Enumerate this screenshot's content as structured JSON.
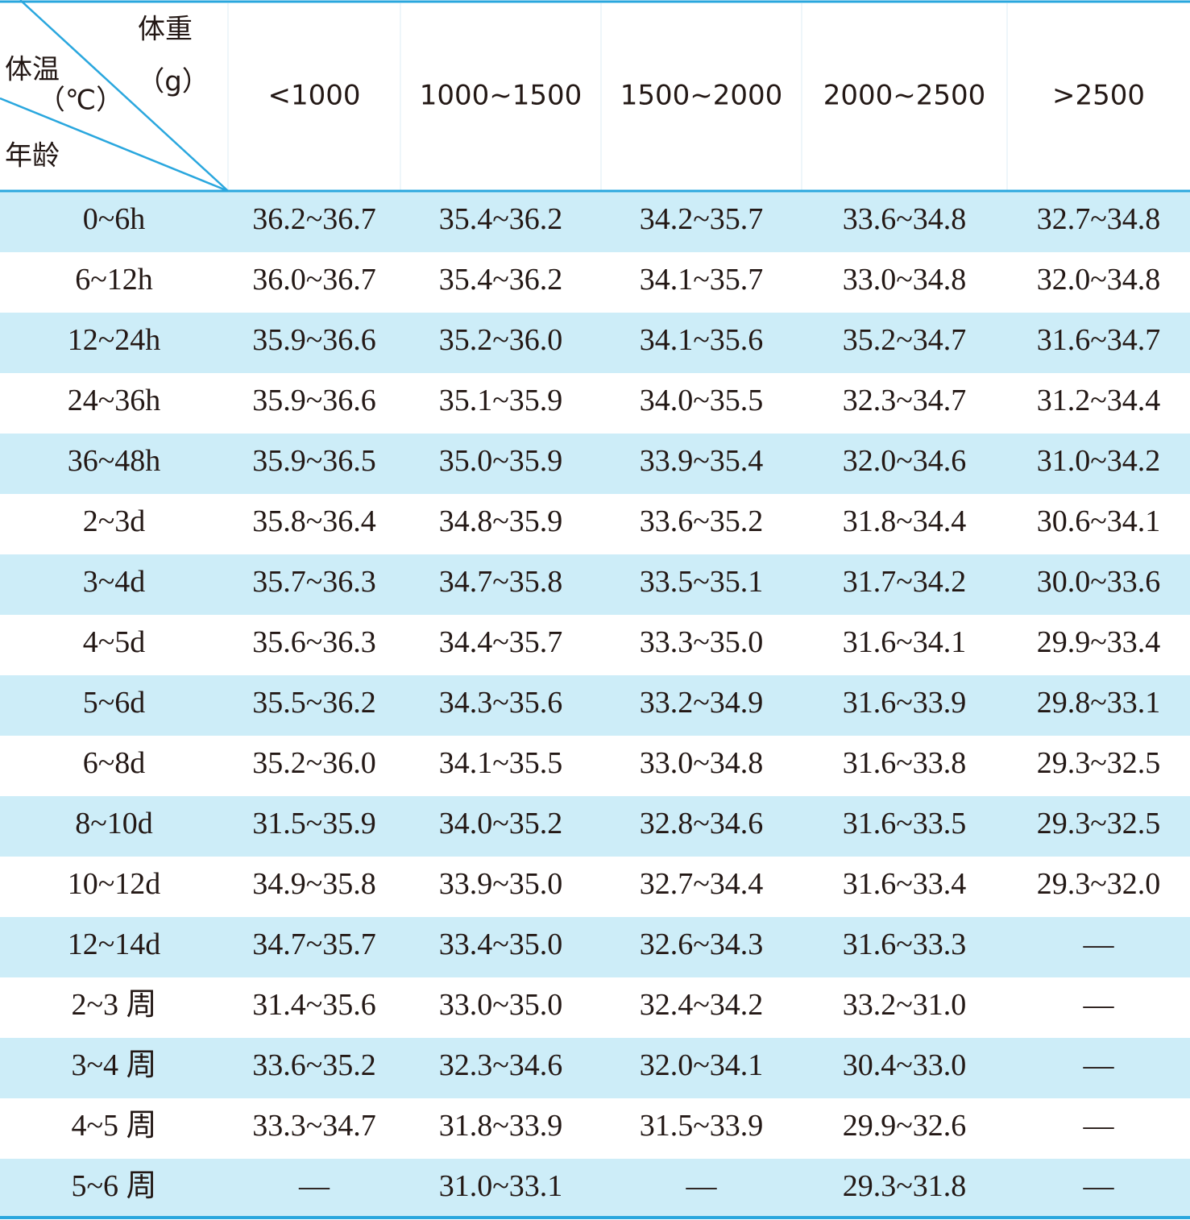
{
  "header": {
    "weight_label": "体重",
    "weight_unit": "（g）",
    "temp_label": "体温",
    "temp_unit": "（℃）",
    "age_label": "年龄"
  },
  "table": {
    "columns": [
      "<1000",
      "1000~1500",
      "1500~2000",
      "2000~2500",
      ">2500"
    ],
    "rows": [
      [
        "0~6h",
        "36.2~36.7",
        "35.4~36.2",
        "34.2~35.7",
        "33.6~34.8",
        "32.7~34.8"
      ],
      [
        "6~12h",
        "36.0~36.7",
        "35.4~36.2",
        "34.1~35.7",
        "33.0~34.8",
        "32.0~34.8"
      ],
      [
        "12~24h",
        "35.9~36.6",
        "35.2~36.0",
        "34.1~35.6",
        "35.2~34.7",
        "31.6~34.7"
      ],
      [
        "24~36h",
        "35.9~36.6",
        "35.1~35.9",
        "34.0~35.5",
        "32.3~34.7",
        "31.2~34.4"
      ],
      [
        "36~48h",
        "35.9~36.5",
        "35.0~35.9",
        "33.9~35.4",
        "32.0~34.6",
        "31.0~34.2"
      ],
      [
        "2~3d",
        "35.8~36.4",
        "34.8~35.9",
        "33.6~35.2",
        "31.8~34.4",
        "30.6~34.1"
      ],
      [
        "3~4d",
        "35.7~36.3",
        "34.7~35.8",
        "33.5~35.1",
        "31.7~34.2",
        "30.0~33.6"
      ],
      [
        "4~5d",
        "35.6~36.3",
        "34.4~35.7",
        "33.3~35.0",
        "31.6~34.1",
        "29.9~33.4"
      ],
      [
        "5~6d",
        "35.5~36.2",
        "34.3~35.6",
        "33.2~34.9",
        "31.6~33.9",
        "29.8~33.1"
      ],
      [
        "6~8d",
        "35.2~36.0",
        "34.1~35.5",
        "33.0~34.8",
        "31.6~33.8",
        "29.3~32.5"
      ],
      [
        "8~10d",
        "31.5~35.9",
        "34.0~35.2",
        "32.8~34.6",
        "31.6~33.5",
        "29.3~32.5"
      ],
      [
        "10~12d",
        "34.9~35.8",
        "33.9~35.0",
        "32.7~34.4",
        "31.6~33.4",
        "29.3~32.0"
      ],
      [
        "12~14d",
        "34.7~35.7",
        "33.4~35.0",
        "32.6~34.3",
        "31.6~33.3",
        "—"
      ],
      [
        "2~3 周",
        "31.4~35.6",
        "33.0~35.0",
        "32.4~34.2",
        "33.2~31.0",
        "—"
      ],
      [
        "3~4 周",
        "33.6~35.2",
        "32.3~34.6",
        "32.0~34.1",
        "30.4~33.0",
        "—"
      ],
      [
        "4~5 周",
        "33.3~34.7",
        "31.8~33.9",
        "31.5~33.9",
        "29.9~32.6",
        "—"
      ],
      [
        "5~6 周",
        "—",
        "31.0~33.1",
        "—",
        "29.3~31.8",
        "—"
      ]
    ]
  }
}
